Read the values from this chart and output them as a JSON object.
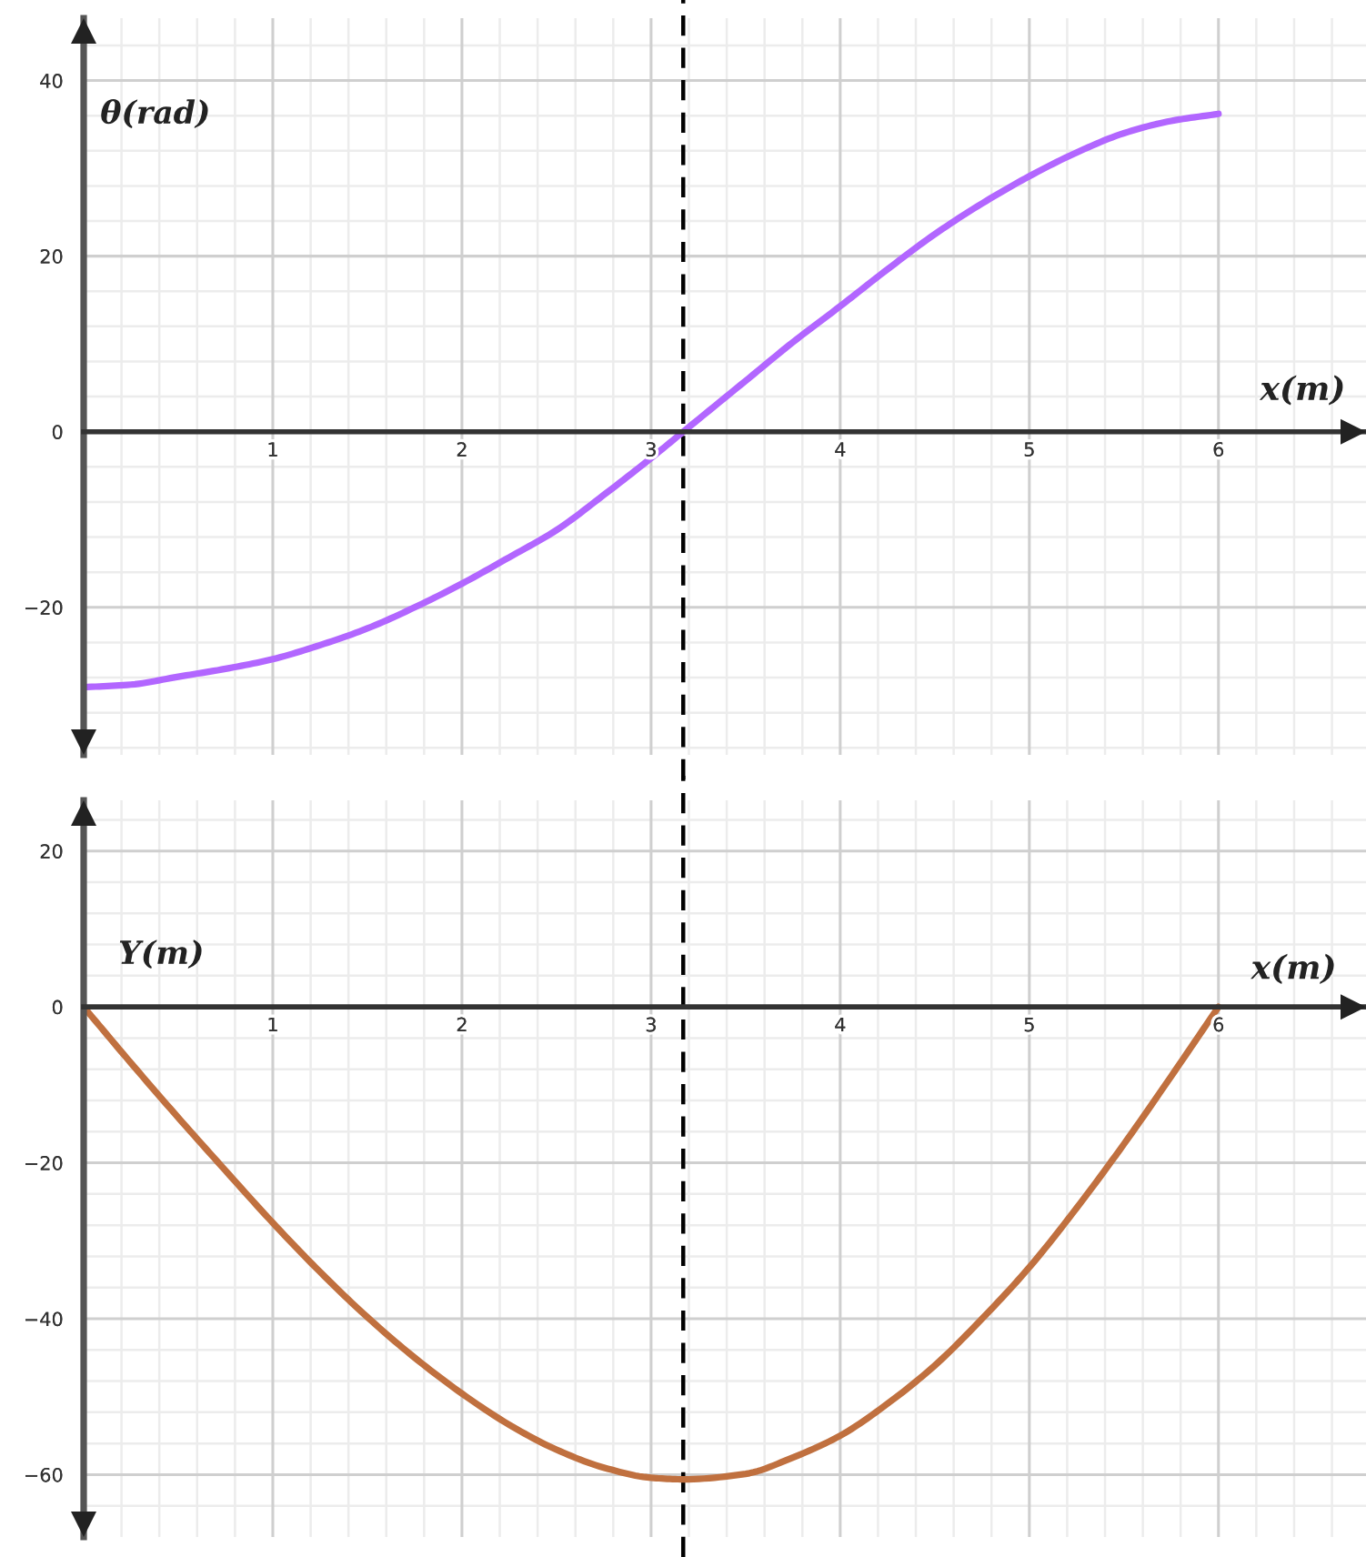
{
  "chart_data": [
    {
      "type": "line",
      "xlabel": "x(m)",
      "ylabel": "θ(rad)",
      "x": [
        0,
        0.25,
        0.5,
        0.75,
        1,
        1.25,
        1.5,
        1.75,
        2,
        2.25,
        2.5,
        2.75,
        3,
        3.17,
        3.5,
        3.75,
        4,
        4.25,
        4.5,
        4.75,
        5,
        5.25,
        5.5,
        5.75,
        6
      ],
      "series": [
        {
          "color": "#b266ff",
          "values": [
            -29.1,
            -28.8,
            -27.9,
            -27.0,
            -25.9,
            -24.3,
            -22.4,
            -20.0,
            -17.3,
            -14.3,
            -11.2,
            -7.2,
            -3.0,
            0,
            5.8,
            10.2,
            14.3,
            18.5,
            22.5,
            26.0,
            29.1,
            31.8,
            34.0,
            35.4,
            36.2
          ]
        }
      ],
      "xlim": [
        0,
        6.78
      ],
      "ylim": [
        -36.8,
        47.1
      ],
      "xticks": [
        1,
        2,
        3,
        4,
        5,
        6,
        {
          "value": 0.2,
          "label": null
        },
        {
          "value": 0.4,
          "label": null
        },
        {
          "value": 0.6,
          "label": null
        },
        {
          "value": 0.8,
          "label": null
        },
        {
          "value": 1.2,
          "label": null
        },
        {
          "value": 1.4,
          "label": null
        },
        {
          "value": 1.6,
          "label": null
        },
        {
          "value": 1.8,
          "label": null
        },
        {
          "value": 2.2,
          "label": null
        },
        {
          "value": 2.4,
          "label": null
        },
        {
          "value": 2.6,
          "label": null
        },
        {
          "value": 2.8,
          "label": null
        },
        {
          "value": 3.2,
          "label": null
        },
        {
          "value": 3.4,
          "label": null
        },
        {
          "value": 3.6,
          "label": null
        },
        {
          "value": 3.8,
          "label": null
        },
        {
          "value": 4.2,
          "label": null
        },
        {
          "value": 4.4,
          "label": null
        },
        {
          "value": 4.6,
          "label": null
        },
        {
          "value": 4.8,
          "label": null
        },
        {
          "value": 5.2,
          "label": null
        },
        {
          "value": 5.4,
          "label": null
        },
        {
          "value": 5.6,
          "label": null
        },
        {
          "value": 5.8,
          "label": null
        },
        {
          "value": 6.2,
          "label": null
        },
        {
          "value": 6.4,
          "label": null
        },
        {
          "value": 6.6,
          "label": null
        }
      ],
      "yticks": [
        40,
        20,
        0,
        {
          "value": -20,
          "label": "−20"
        },
        {
          "value": 44,
          "label": null
        },
        {
          "value": 36,
          "label": null
        },
        {
          "value": 32,
          "label": null
        },
        {
          "value": 28,
          "label": null
        },
        {
          "value": 24,
          "label": null
        },
        {
          "value": 16,
          "label": null
        },
        {
          "value": 12,
          "label": null
        },
        {
          "value": 8,
          "label": null
        },
        {
          "value": 4,
          "label": null
        },
        {
          "value": -4,
          "label": null
        },
        {
          "value": -8,
          "label": null
        },
        {
          "value": -12,
          "label": null
        },
        {
          "value": -16,
          "label": null
        },
        {
          "value": -24,
          "label": null
        },
        {
          "value": -28,
          "label": null
        },
        {
          "value": -32,
          "label": null
        },
        {
          "value": -36,
          "label": null
        }
      ],
      "grid": true,
      "ref_lines": [
        {
          "axis": "x",
          "value": 3.17,
          "label": null,
          "color": "#000000",
          "line_style": "dashed"
        }
      ]
    },
    {
      "type": "line",
      "xlabel": "x(m)",
      "ylabel": "Y(m)",
      "x": [
        0,
        0.25,
        0.5,
        0.75,
        1,
        1.25,
        1.5,
        1.75,
        2,
        2.25,
        2.5,
        2.75,
        3,
        3.17,
        3.5,
        3.75,
        4,
        4.25,
        4.5,
        4.75,
        5,
        5.25,
        5.5,
        5.75,
        6
      ],
      "series": [
        {
          "color": "#c0703f",
          "values": [
            0,
            -7.2,
            -14.2,
            -21.0,
            -27.7,
            -34.0,
            -39.8,
            -45.0,
            -49.6,
            -53.6,
            -56.8,
            -59.1,
            -60.4,
            -60.6,
            -59.9,
            -57.8,
            -55.0,
            -50.9,
            -46.0,
            -40.0,
            -33.4,
            -25.8,
            -17.6,
            -8.9,
            0
          ]
        }
      ],
      "xlim": [
        0,
        6.78
      ],
      "ylim": [
        -68,
        26.5
      ],
      "xticks": [
        1,
        2,
        3,
        4,
        5,
        6,
        {
          "value": 0.2,
          "label": null
        },
        {
          "value": 0.4,
          "label": null
        },
        {
          "value": 0.6,
          "label": null
        },
        {
          "value": 0.8,
          "label": null
        },
        {
          "value": 1.2,
          "label": null
        },
        {
          "value": 1.4,
          "label": null
        },
        {
          "value": 1.6,
          "label": null
        },
        {
          "value": 1.8,
          "label": null
        },
        {
          "value": 2.2,
          "label": null
        },
        {
          "value": 2.4,
          "label": null
        },
        {
          "value": 2.6,
          "label": null
        },
        {
          "value": 2.8,
          "label": null
        },
        {
          "value": 3.2,
          "label": null
        },
        {
          "value": 3.4,
          "label": null
        },
        {
          "value": 3.6,
          "label": null
        },
        {
          "value": 3.8,
          "label": null
        },
        {
          "value": 4.2,
          "label": null
        },
        {
          "value": 4.4,
          "label": null
        },
        {
          "value": 4.6,
          "label": null
        },
        {
          "value": 4.8,
          "label": null
        },
        {
          "value": 5.2,
          "label": null
        },
        {
          "value": 5.4,
          "label": null
        },
        {
          "value": 5.6,
          "label": null
        },
        {
          "value": 5.8,
          "label": null
        },
        {
          "value": 6.2,
          "label": null
        },
        {
          "value": 6.4,
          "label": null
        },
        {
          "value": 6.6,
          "label": null
        }
      ],
      "yticks": [
        20,
        0,
        {
          "value": -20,
          "label": "−20"
        },
        {
          "value": -40,
          "label": "−40"
        },
        {
          "value": -60,
          "label": "−60"
        },
        {
          "value": 24,
          "label": null
        },
        {
          "value": 16,
          "label": null
        },
        {
          "value": 12,
          "label": null
        },
        {
          "value": 8,
          "label": null
        },
        {
          "value": 4,
          "label": null
        },
        {
          "value": -4,
          "label": null
        },
        {
          "value": -8,
          "label": null
        },
        {
          "value": -12,
          "label": null
        },
        {
          "value": -16,
          "label": null
        },
        {
          "value": -24,
          "label": null
        },
        {
          "value": -28,
          "label": null
        },
        {
          "value": -32,
          "label": null
        },
        {
          "value": -36,
          "label": null
        },
        {
          "value": -44,
          "label": null
        },
        {
          "value": -48,
          "label": null
        },
        {
          "value": -52,
          "label": null
        },
        {
          "value": -56,
          "label": null
        },
        {
          "value": -64,
          "label": null
        }
      ],
      "grid": true,
      "ref_lines": [
        {
          "axis": "x",
          "value": 3.17,
          "label": null,
          "color": "#000000",
          "line_style": "dashed"
        }
      ]
    }
  ]
}
